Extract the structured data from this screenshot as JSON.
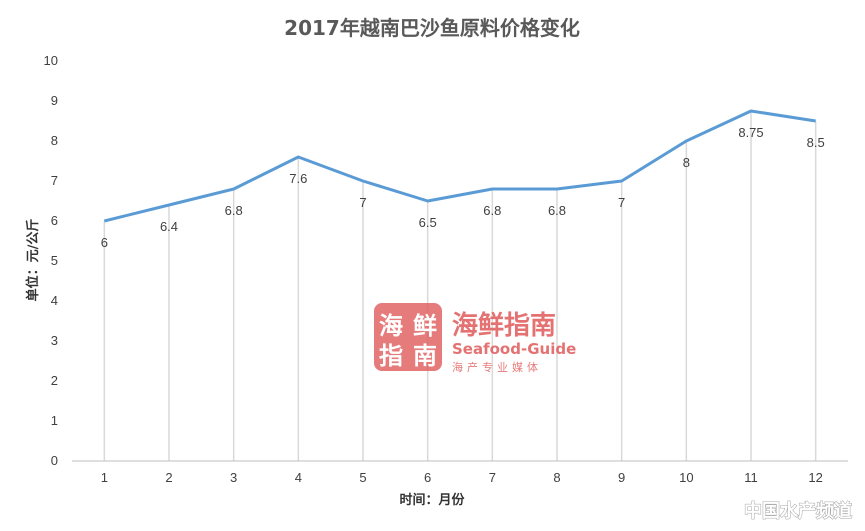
{
  "chart_data": {
    "type": "line",
    "title": "2017年越南巴沙鱼原料价格变化",
    "xlabel": "时间：月份",
    "ylabel": "单位：元/公斤",
    "categories": [
      "1",
      "2",
      "3",
      "4",
      "5",
      "6",
      "7",
      "8",
      "9",
      "10",
      "11",
      "12"
    ],
    "values": [
      6,
      6.4,
      6.8,
      7.6,
      7,
      6.5,
      6.8,
      6.8,
      7,
      8,
      8.75,
      8.5
    ],
    "data_labels": [
      "6",
      "6.4",
      "6.8",
      "7.6",
      "7",
      "6.5",
      "6.8",
      "6.8",
      "7",
      "8",
      "8.75",
      "8.5"
    ],
    "yticks": [
      "0",
      "1",
      "2",
      "3",
      "4",
      "5",
      "6",
      "7",
      "8",
      "9",
      "10"
    ],
    "ylim": [
      0,
      10
    ],
    "grid": "vertical drop lines",
    "legend": "none",
    "colors": {
      "line": "#5b9bd5",
      "droplines": "#d9d9d9",
      "axis": "#bfbfbf"
    }
  },
  "watermark": {
    "logo_chars": [
      "海",
      "鲜",
      "指",
      "南"
    ],
    "name": "海鲜指南",
    "name_en": "Seafood-Guide",
    "tagline": "海产专业媒体",
    "corner": "中国水产频道"
  }
}
